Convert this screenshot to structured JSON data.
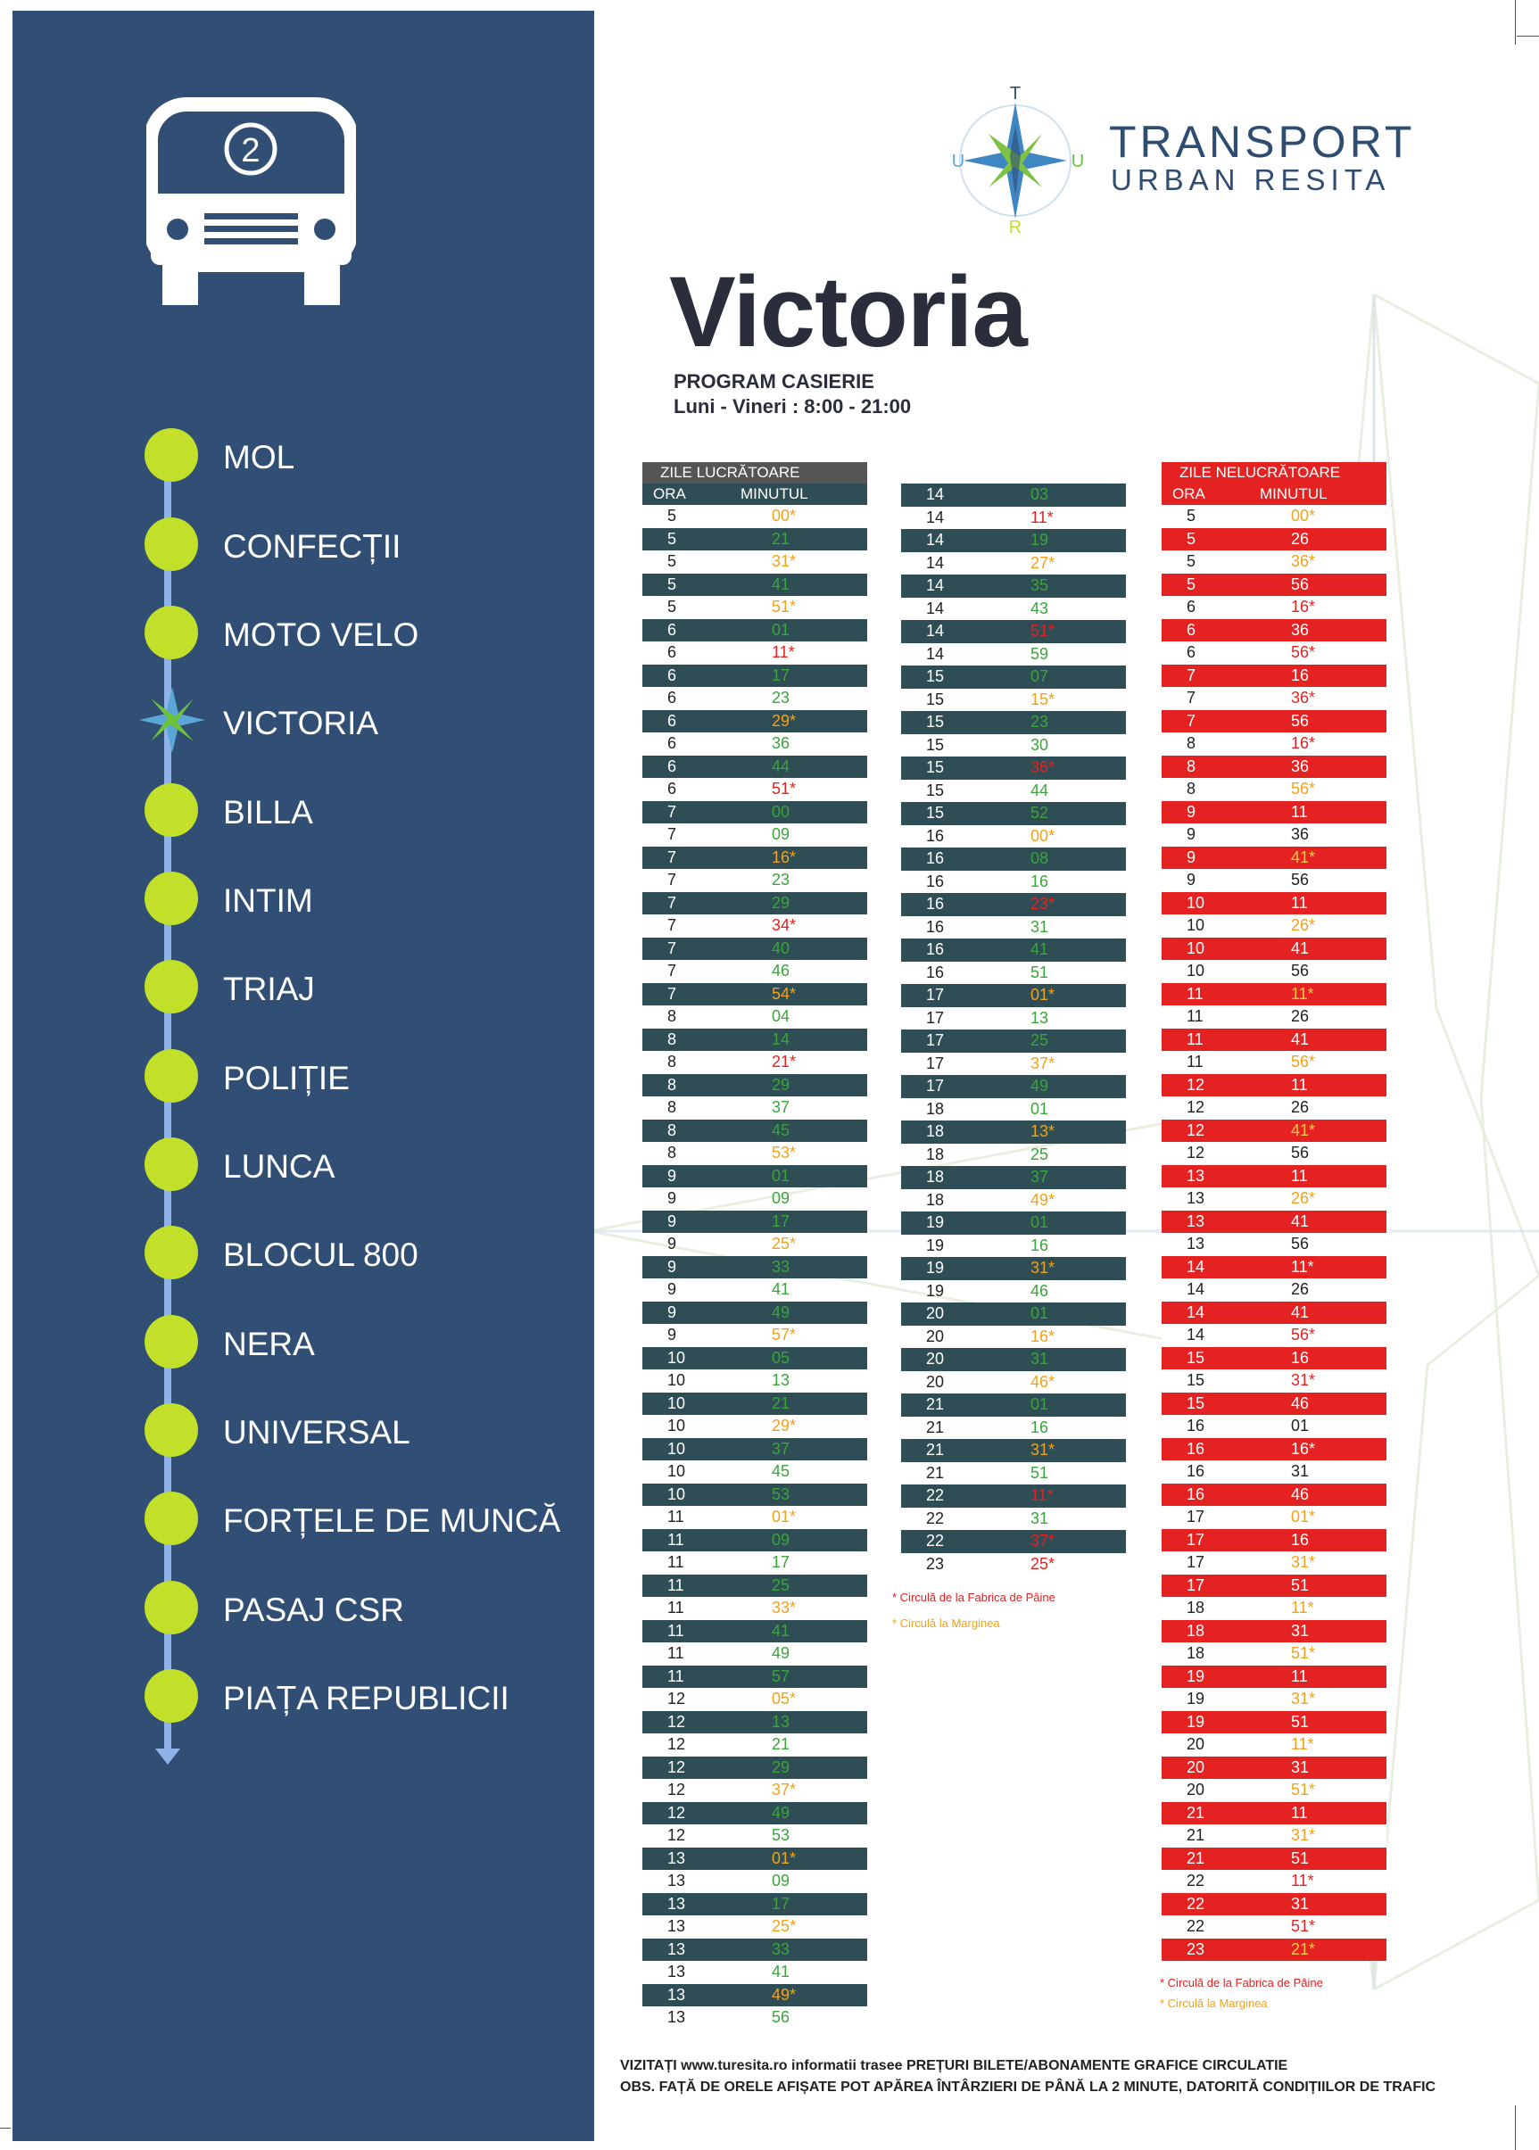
{
  "route_number": "2",
  "stops": [
    "MOL",
    "CONFECȚII",
    "MOTO VELO",
    "VICTORIA",
    "BILLA",
    "INTIM",
    "TRIAJ",
    "POLIȚIE",
    "LUNCA",
    "BLOCUL 800",
    "NERA",
    "UNIVERSAL",
    "FORȚELE DE MUNCĂ",
    "PASAJ CSR",
    "PIAȚA REPUBLICII"
  ],
  "logo": {
    "line1": "TRANSPORT",
    "line2": "URBAN RESITA",
    "letters": [
      "T",
      "U",
      "R",
      "U"
    ]
  },
  "title": "Victoria",
  "cashier": {
    "label": "PROGRAM CASIERIE",
    "hours": "Luni - Vineri : 8:00 - 21:00"
  },
  "colors": {
    "navy": "#314f75",
    "lime": "#c2df2a",
    "teal": "#2f4d55",
    "red": "#e52222",
    "orange": "#f2a218",
    "green": "#3aa53a"
  },
  "weekday": {
    "title": "ZILE LUCRĂTOARE",
    "col_hour": "ORA",
    "col_minute": "MINUTUL",
    "rows": [
      [
        "5",
        "00*",
        "orange"
      ],
      [
        "5",
        "21",
        "green"
      ],
      [
        "5",
        "31*",
        "orange"
      ],
      [
        "5",
        "41",
        "green"
      ],
      [
        "5",
        "51*",
        "orange"
      ],
      [
        "6",
        "01",
        "green"
      ],
      [
        "6",
        "11*",
        "red"
      ],
      [
        "6",
        "17",
        "green"
      ],
      [
        "6",
        "23",
        "green"
      ],
      [
        "6",
        "29*",
        "orange"
      ],
      [
        "6",
        "36",
        "green"
      ],
      [
        "6",
        "44",
        "green"
      ],
      [
        "6",
        "51*",
        "red"
      ],
      [
        "7",
        "00",
        "green"
      ],
      [
        "7",
        "09",
        "green"
      ],
      [
        "7",
        "16*",
        "orange"
      ],
      [
        "7",
        "23",
        "green"
      ],
      [
        "7",
        "29",
        "green"
      ],
      [
        "7",
        "34*",
        "red"
      ],
      [
        "7",
        "40",
        "green"
      ],
      [
        "7",
        "46",
        "green"
      ],
      [
        "7",
        "54*",
        "orange"
      ],
      [
        "8",
        "04",
        "green"
      ],
      [
        "8",
        "14",
        "green"
      ],
      [
        "8",
        "21*",
        "red"
      ],
      [
        "8",
        "29",
        "green"
      ],
      [
        "8",
        "37",
        "green"
      ],
      [
        "8",
        "45",
        "green"
      ],
      [
        "8",
        "53*",
        "orange"
      ],
      [
        "9",
        "01",
        "green"
      ],
      [
        "9",
        "09",
        "green"
      ],
      [
        "9",
        "17",
        "green"
      ],
      [
        "9",
        "25*",
        "orange"
      ],
      [
        "9",
        "33",
        "green"
      ],
      [
        "9",
        "41",
        "green"
      ],
      [
        "9",
        "49",
        "green"
      ],
      [
        "9",
        "57*",
        "orange"
      ],
      [
        "10",
        "05",
        "green"
      ],
      [
        "10",
        "13",
        "green"
      ],
      [
        "10",
        "21",
        "green"
      ],
      [
        "10",
        "29*",
        "orange"
      ],
      [
        "10",
        "37",
        "green"
      ],
      [
        "10",
        "45",
        "green"
      ],
      [
        "10",
        "53",
        "green"
      ],
      [
        "11",
        "01*",
        "orange"
      ],
      [
        "11",
        "09",
        "green"
      ],
      [
        "11",
        "17",
        "green"
      ],
      [
        "11",
        "25",
        "green"
      ],
      [
        "11",
        "33*",
        "orange"
      ],
      [
        "11",
        "41",
        "green"
      ],
      [
        "11",
        "49",
        "green"
      ],
      [
        "11",
        "57",
        "green"
      ],
      [
        "12",
        "05*",
        "orange"
      ],
      [
        "12",
        "13",
        "green"
      ],
      [
        "12",
        "21",
        "green"
      ],
      [
        "12",
        "29",
        "green"
      ],
      [
        "12",
        "37*",
        "orange"
      ],
      [
        "12",
        "49",
        "green"
      ],
      [
        "12",
        "53",
        "green"
      ],
      [
        "13",
        "01*",
        "orange"
      ],
      [
        "13",
        "09",
        "green"
      ],
      [
        "13",
        "17",
        "green"
      ],
      [
        "13",
        "25*",
        "orange"
      ],
      [
        "13",
        "33",
        "green"
      ],
      [
        "13",
        "41",
        "green"
      ],
      [
        "13",
        "49*",
        "orange"
      ],
      [
        "13",
        "56",
        "green"
      ],
      [
        "14",
        "03",
        "green"
      ],
      [
        "14",
        "11*",
        "red"
      ],
      [
        "14",
        "19",
        "green"
      ],
      [
        "14",
        "27*",
        "orange"
      ],
      [
        "14",
        "35",
        "green"
      ],
      [
        "14",
        "43",
        "green"
      ],
      [
        "14",
        "51*",
        "red"
      ],
      [
        "14",
        "59",
        "green"
      ],
      [
        "15",
        "07",
        "green"
      ],
      [
        "15",
        "15*",
        "orange"
      ],
      [
        "15",
        "23",
        "green"
      ],
      [
        "15",
        "30",
        "green"
      ],
      [
        "15",
        "36*",
        "red"
      ],
      [
        "15",
        "44",
        "green"
      ],
      [
        "15",
        "52",
        "green"
      ],
      [
        "16",
        "00*",
        "orange"
      ],
      [
        "16",
        "08",
        "green"
      ],
      [
        "16",
        "16",
        "green"
      ],
      [
        "16",
        "23*",
        "red"
      ],
      [
        "16",
        "31",
        "green"
      ],
      [
        "16",
        "41",
        "green"
      ],
      [
        "16",
        "51",
        "green"
      ],
      [
        "17",
        "01*",
        "orange"
      ],
      [
        "17",
        "13",
        "green"
      ],
      [
        "17",
        "25",
        "green"
      ],
      [
        "17",
        "37*",
        "orange"
      ],
      [
        "17",
        "49",
        "green"
      ],
      [
        "18",
        "01",
        "green"
      ],
      [
        "18",
        "13*",
        "orange"
      ],
      [
        "18",
        "25",
        "green"
      ],
      [
        "18",
        "37",
        "green"
      ],
      [
        "18",
        "49*",
        "orange"
      ],
      [
        "19",
        "01",
        "green"
      ],
      [
        "19",
        "16",
        "green"
      ],
      [
        "19",
        "31*",
        "orange"
      ],
      [
        "19",
        "46",
        "green"
      ],
      [
        "20",
        "01",
        "green"
      ],
      [
        "20",
        "16*",
        "orange"
      ],
      [
        "20",
        "31",
        "green"
      ],
      [
        "20",
        "46*",
        "orange"
      ],
      [
        "21",
        "01",
        "green"
      ],
      [
        "21",
        "16",
        "green"
      ],
      [
        "21",
        "31*",
        "orange"
      ],
      [
        "21",
        "51",
        "green"
      ],
      [
        "22",
        "11*",
        "red"
      ],
      [
        "22",
        "31",
        "green"
      ],
      [
        "22",
        "37*",
        "red"
      ],
      [
        "23",
        "25*",
        "red"
      ]
    ]
  },
  "weekend": {
    "title": "ZILE NELUCRĂTOARE",
    "col_hour": "ORA",
    "col_minute": "MINUTUL",
    "rows": [
      [
        "5",
        "00*",
        "orange"
      ],
      [
        "5",
        "26",
        "dark"
      ],
      [
        "5",
        "36*",
        "orange"
      ],
      [
        "5",
        "56",
        "dark"
      ],
      [
        "6",
        "16*",
        "red"
      ],
      [
        "6",
        "36",
        "dark"
      ],
      [
        "6",
        "56*",
        "red"
      ],
      [
        "7",
        "16",
        "dark"
      ],
      [
        "7",
        "36*",
        "red"
      ],
      [
        "7",
        "56",
        "dark"
      ],
      [
        "8",
        "16*",
        "red"
      ],
      [
        "8",
        "36",
        "dark"
      ],
      [
        "8",
        "56*",
        "orange"
      ],
      [
        "9",
        "11",
        "dark"
      ],
      [
        "9",
        "36",
        "dark"
      ],
      [
        "9",
        "41*",
        "orange"
      ],
      [
        "9",
        "56",
        "dark"
      ],
      [
        "10",
        "11",
        "dark"
      ],
      [
        "10",
        "26*",
        "orange"
      ],
      [
        "10",
        "41",
        "dark"
      ],
      [
        "10",
        "56",
        "dark"
      ],
      [
        "11",
        "11*",
        "orange"
      ],
      [
        "11",
        "26",
        "dark"
      ],
      [
        "11",
        "41",
        "dark"
      ],
      [
        "11",
        "56*",
        "orange"
      ],
      [
        "12",
        "11",
        "dark"
      ],
      [
        "12",
        "26",
        "dark"
      ],
      [
        "12",
        "41*",
        "orange"
      ],
      [
        "12",
        "56",
        "dark"
      ],
      [
        "13",
        "11",
        "dark"
      ],
      [
        "13",
        "26*",
        "orange"
      ],
      [
        "13",
        "41",
        "dark"
      ],
      [
        "13",
        "56",
        "dark"
      ],
      [
        "14",
        "11*",
        "red"
      ],
      [
        "14",
        "26",
        "dark"
      ],
      [
        "14",
        "41",
        "dark"
      ],
      [
        "14",
        "56*",
        "red"
      ],
      [
        "15",
        "16",
        "dark"
      ],
      [
        "15",
        "31*",
        "red"
      ],
      [
        "15",
        "46",
        "dark"
      ],
      [
        "16",
        "01",
        "dark"
      ],
      [
        "16",
        "16*",
        "dark"
      ],
      [
        "16",
        "31",
        "dark"
      ],
      [
        "16",
        "46",
        "dark"
      ],
      [
        "17",
        "01*",
        "orange"
      ],
      [
        "17",
        "16",
        "dark"
      ],
      [
        "17",
        "31*",
        "orange"
      ],
      [
        "17",
        "51",
        "dark"
      ],
      [
        "18",
        "11*",
        "orange"
      ],
      [
        "18",
        "31",
        "dark"
      ],
      [
        "18",
        "51*",
        "orange"
      ],
      [
        "19",
        "11",
        "dark"
      ],
      [
        "19",
        "31*",
        "orange"
      ],
      [
        "19",
        "51",
        "dark"
      ],
      [
        "20",
        "11*",
        "orange"
      ],
      [
        "20",
        "31",
        "dark"
      ],
      [
        "20",
        "51*",
        "orange"
      ],
      [
        "21",
        "11",
        "dark"
      ],
      [
        "21",
        "31*",
        "orange"
      ],
      [
        "21",
        "51",
        "dark"
      ],
      [
        "22",
        "11*",
        "red"
      ],
      [
        "22",
        "31",
        "dark"
      ],
      [
        "22",
        "51*",
        "red"
      ],
      [
        "23",
        "21*",
        "orange"
      ]
    ]
  },
  "notes": {
    "red": "* Circulă de la Fabrica de Pâine",
    "orange": "* Circulă la Marginea"
  },
  "footer": {
    "line1": "VIZITAȚI www.turesita.ro informatii trasee PREȚURI BILETE/ABONAMENTE GRAFICE CIRCULATIE",
    "line2": "OBS. FAȚĂ DE ORELE AFIȘATE POT APĂREA ÎNTÂRZIERI DE PÂNĂ LA 2 MINUTE, DATORITĂ CONDIȚIILOR DE TRAFIC"
  }
}
